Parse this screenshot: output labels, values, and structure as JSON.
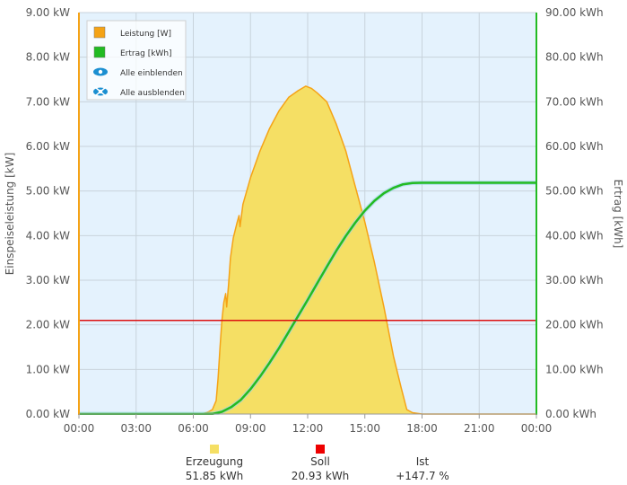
{
  "chart_data": {
    "type": "area",
    "x_ticks": [
      "00:00",
      "03:00",
      "06:00",
      "09:00",
      "12:00",
      "15:00",
      "18:00",
      "21:00",
      "00:00"
    ],
    "x_range_hours": [
      0,
      24
    ],
    "ylabel_left": "Einspeiseleistung [kW]",
    "ylabel_right": "Ertrag [kWh]",
    "ylim_left": [
      0,
      9
    ],
    "ylim_right": [
      0,
      90
    ],
    "yticks_left": [
      "0.00 kW",
      "1.00 kW",
      "2.00 kW",
      "3.00 kW",
      "4.00 kW",
      "5.00 kW",
      "6.00 kW",
      "7.00 kW",
      "8.00 kW",
      "9.00 kW"
    ],
    "yticks_right": [
      "0.00 kWh",
      "10.00 kWh",
      "20.00 kWh",
      "30.00 kWh",
      "40.00 kWh",
      "50.00 kWh",
      "60.00 kWh",
      "70.00 kWh",
      "80.00 kWh",
      "90.00 kWh"
    ],
    "grid": true,
    "legend_position": "top-left",
    "legend": [
      {
        "label": "Leistung [W]",
        "color": "#f5a316",
        "icon": "square"
      },
      {
        "label": "Ertrag [kWh]",
        "color": "#22bb22",
        "icon": "square"
      },
      {
        "label": "Alle einblenden",
        "color": "#1b8fd1",
        "icon": "eye-icon"
      },
      {
        "label": "Alle ausblenden",
        "color": "#1b8fd1",
        "icon": "eye-crossed-icon"
      }
    ],
    "series": [
      {
        "name": "Leistung [W]",
        "axis": "left",
        "fill": "#f5df64",
        "stroke": "#f5a316",
        "points": [
          [
            0,
            0
          ],
          [
            6.5,
            0
          ],
          [
            6.8,
            0.05
          ],
          [
            7.0,
            0.1
          ],
          [
            7.2,
            0.3
          ],
          [
            7.3,
            0.8
          ],
          [
            7.4,
            1.5
          ],
          [
            7.5,
            2.1
          ],
          [
            7.6,
            2.5
          ],
          [
            7.7,
            2.7
          ],
          [
            7.75,
            2.4
          ],
          [
            7.85,
            2.9
          ],
          [
            7.95,
            3.5
          ],
          [
            8.1,
            3.95
          ],
          [
            8.3,
            4.3
          ],
          [
            8.4,
            4.45
          ],
          [
            8.45,
            4.2
          ],
          [
            8.6,
            4.7
          ],
          [
            9.0,
            5.3
          ],
          [
            9.5,
            5.9
          ],
          [
            10.0,
            6.4
          ],
          [
            10.5,
            6.8
          ],
          [
            11.0,
            7.1
          ],
          [
            11.5,
            7.25
          ],
          [
            11.9,
            7.35
          ],
          [
            12.2,
            7.3
          ],
          [
            12.5,
            7.2
          ],
          [
            13.0,
            7.0
          ],
          [
            13.5,
            6.5
          ],
          [
            14.0,
            5.9
          ],
          [
            14.5,
            5.1
          ],
          [
            15.0,
            4.3
          ],
          [
            15.5,
            3.4
          ],
          [
            16.0,
            2.4
          ],
          [
            16.5,
            1.3
          ],
          [
            16.9,
            0.6
          ],
          [
            17.2,
            0.1
          ],
          [
            17.5,
            0.03
          ],
          [
            18.0,
            0
          ],
          [
            24,
            0
          ]
        ]
      },
      {
        "name": "Ertrag [kWh]",
        "axis": "right",
        "stroke": "#22bb22",
        "points": [
          [
            0,
            0
          ],
          [
            6.5,
            0
          ],
          [
            7.0,
            0.05
          ],
          [
            7.5,
            0.5
          ],
          [
            8.0,
            1.6
          ],
          [
            8.5,
            3.2
          ],
          [
            9.0,
            5.6
          ],
          [
            9.5,
            8.4
          ],
          [
            10.0,
            11.5
          ],
          [
            10.5,
            14.8
          ],
          [
            11.0,
            18.4
          ],
          [
            11.5,
            22.0
          ],
          [
            12.0,
            25.6
          ],
          [
            12.5,
            29.3
          ],
          [
            13.0,
            33.0
          ],
          [
            13.5,
            36.6
          ],
          [
            14.0,
            39.9
          ],
          [
            14.5,
            42.9
          ],
          [
            15.0,
            45.6
          ],
          [
            15.5,
            47.8
          ],
          [
            16.0,
            49.5
          ],
          [
            16.5,
            50.7
          ],
          [
            17.0,
            51.5
          ],
          [
            17.5,
            51.8
          ],
          [
            18.0,
            51.85
          ],
          [
            24,
            51.85
          ]
        ]
      },
      {
        "name": "Soll",
        "axis": "left",
        "stroke": "#dd1111",
        "points": [
          [
            0,
            2.1
          ],
          [
            24,
            2.1
          ]
        ]
      }
    ]
  },
  "summary": [
    {
      "label": "Erzeugung",
      "value": "51.85 kWh",
      "color": "#f5df64"
    },
    {
      "label": "Soll",
      "value": "20.93 kWh",
      "color": "#ee0000"
    },
    {
      "label": "Ist",
      "value": "+147.7 %",
      "color": ""
    }
  ]
}
